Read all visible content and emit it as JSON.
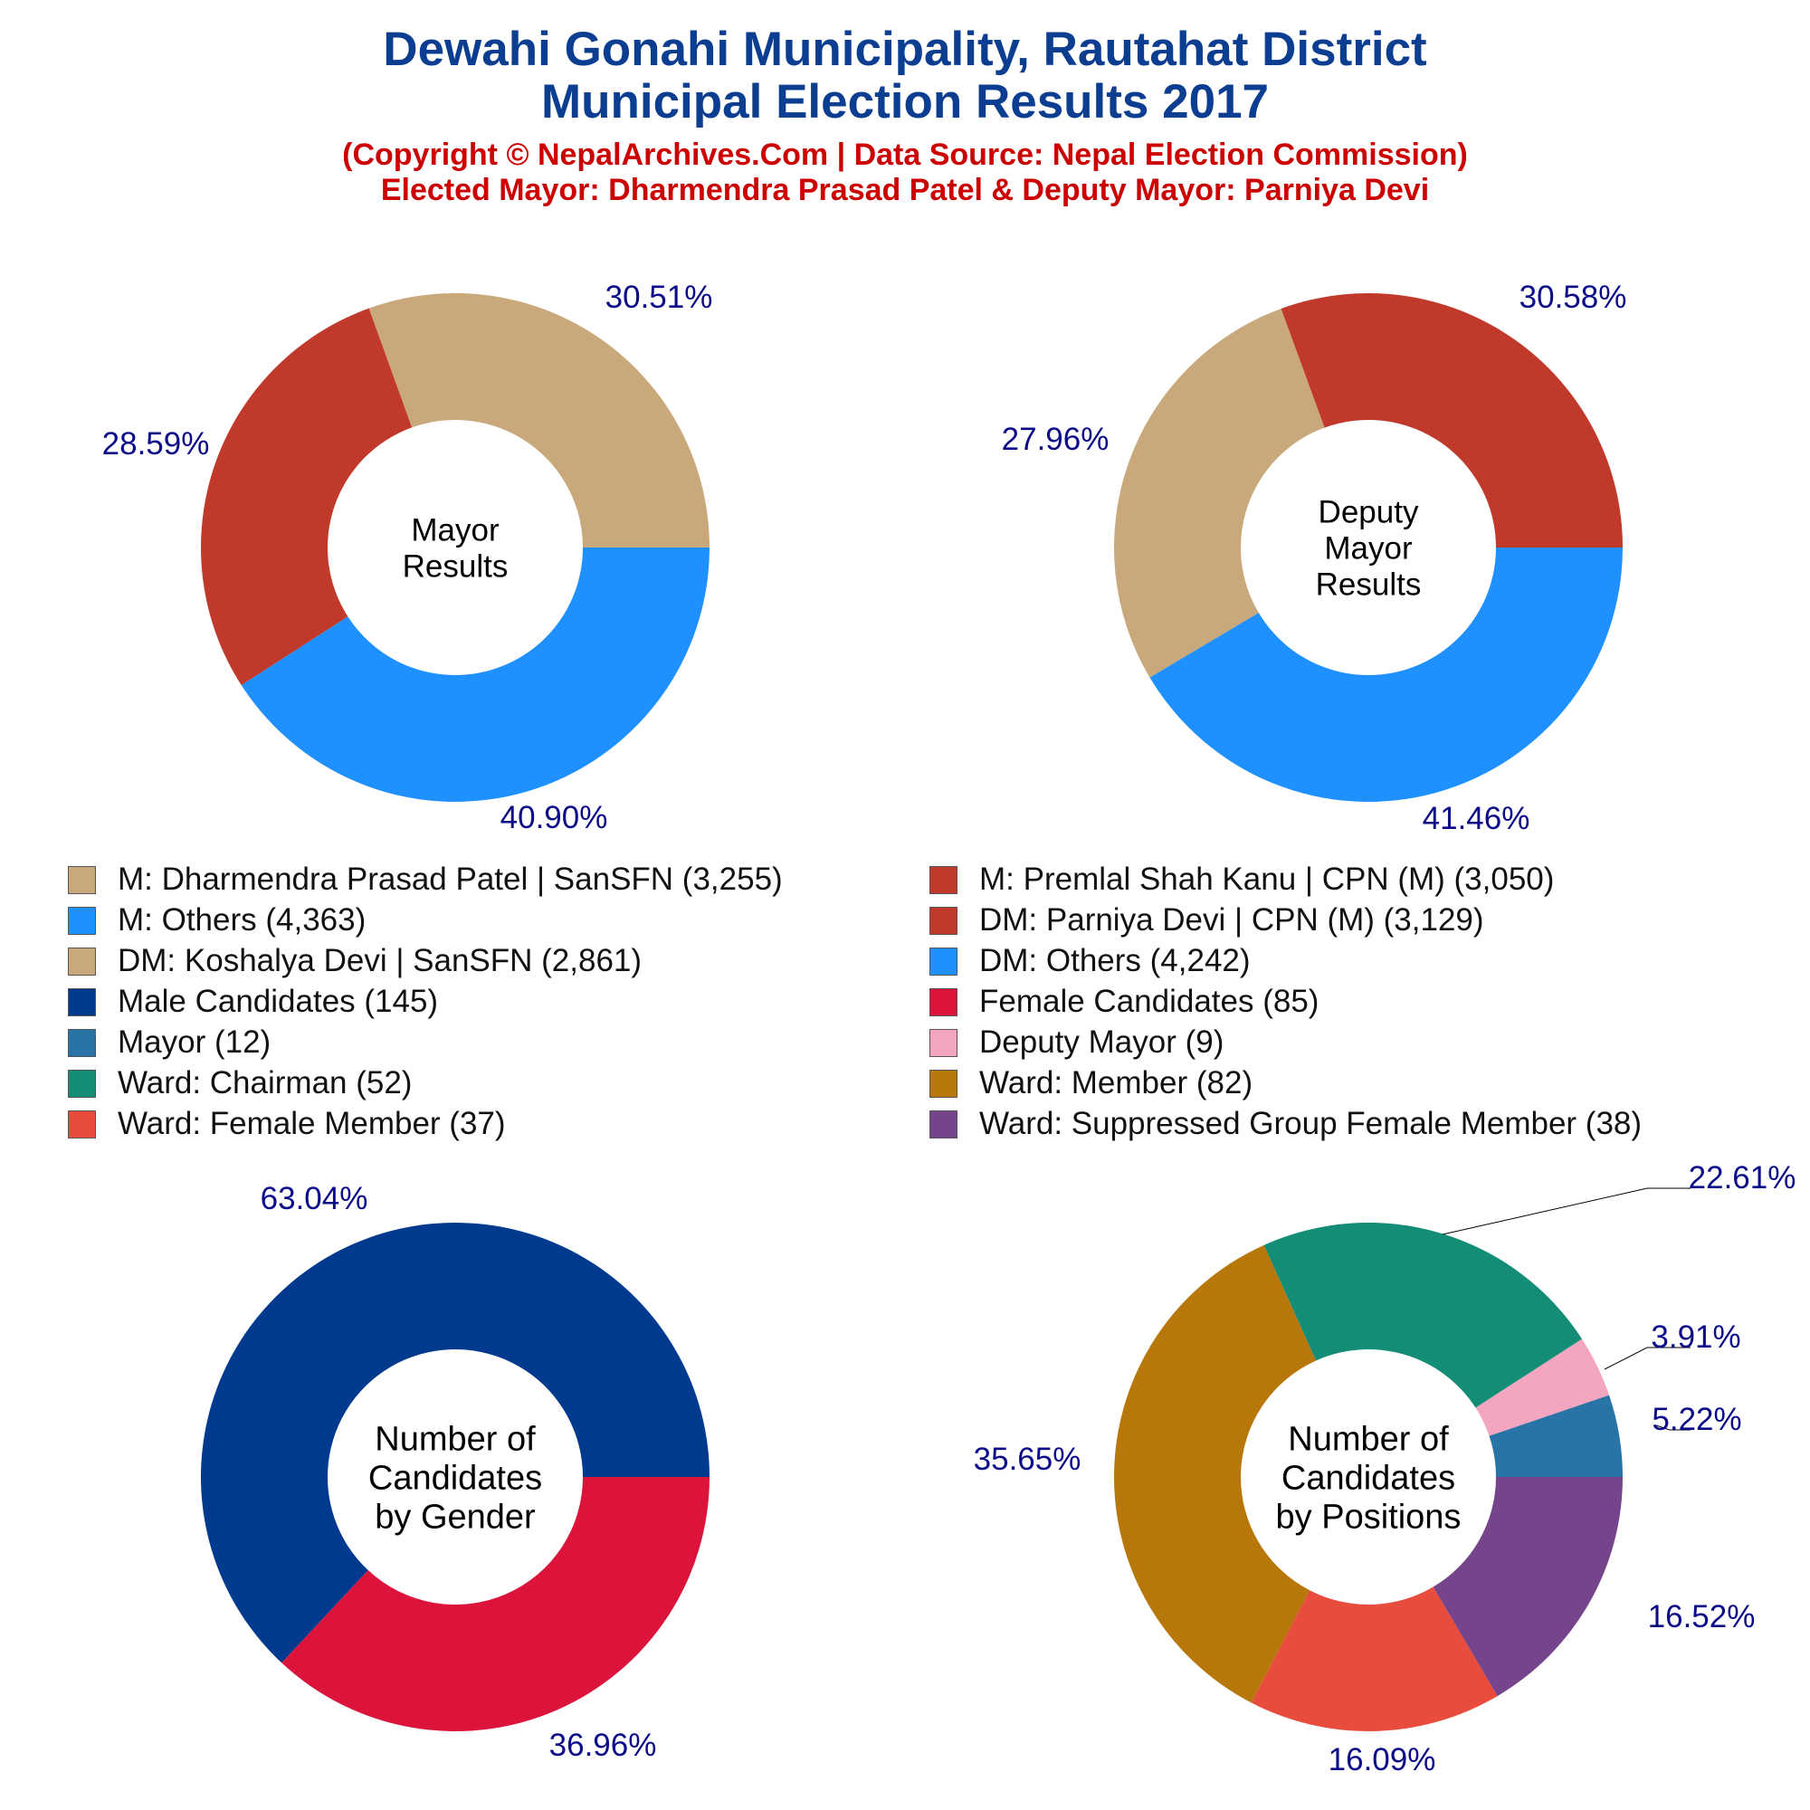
{
  "header": {
    "title": [
      "Dewahi Gonahi Municipality, Rautahat District",
      "Municipal Election Results 2017"
    ],
    "subtitle": [
      "(Copyright © NepalArchives.Com | Data Source: Nepal Election Commission)",
      "Elected Mayor: Dharmendra Prasad Patel & Deputy Mayor: Parniya Devi"
    ]
  },
  "colors": {
    "title": "#0b3d91",
    "subtitle": "#cc0000",
    "percent_label": "#0b0b8a"
  },
  "legend": [
    {
      "label": "M: Dharmendra Prasad Patel | SanSFN (3,255)",
      "color": "#c9a87c"
    },
    {
      "label": "M: Premlal Shah Kanu | CPN (M) (3,050)",
      "color": "#c0392b"
    },
    {
      "label": "M: Others (4,363)",
      "color": "#1e90ff"
    },
    {
      "label": "DM: Parniya Devi | CPN (M) (3,129)",
      "color": "#c0392b"
    },
    {
      "label": "DM: Koshalya Devi | SanSFN (2,861)",
      "color": "#c9a87c"
    },
    {
      "label": "DM: Others (4,242)",
      "color": "#1e90ff"
    },
    {
      "label": "Male Candidates (145)",
      "color": "#003a8f"
    },
    {
      "label": "Female Candidates (85)",
      "color": "#dc143c"
    },
    {
      "label": "Mayor (12)",
      "color": "#2874a6"
    },
    {
      "label": "Deputy Mayor (9)",
      "color": "#f4a6c0"
    },
    {
      "label": "Ward: Chairman (52)",
      "color": "#138d75"
    },
    {
      "label": "Ward: Member (82)",
      "color": "#b8770b"
    },
    {
      "label": "Ward: Female Member (37)",
      "color": "#e74c3c"
    },
    {
      "label": "Ward: Suppressed Group Female Member (38)",
      "color": "#76448a"
    }
  ],
  "chart_data": [
    {
      "type": "pie",
      "center_label": [
        "Mayor",
        "Results"
      ],
      "slices": [
        {
          "name": "M: Dharmendra Prasad Patel | SanSFN",
          "value": 3255,
          "percent_label": "30.51%",
          "color": "#c9a87c"
        },
        {
          "name": "M: Premlal Shah Kanu | CPN (M)",
          "value": 3050,
          "percent_label": "28.59%",
          "color": "#c0392b"
        },
        {
          "name": "M: Others",
          "value": 4363,
          "percent_label": "40.90%",
          "color": "#1e90ff"
        }
      ]
    },
    {
      "type": "pie",
      "center_label": [
        "Deputy",
        "Mayor",
        "Results"
      ],
      "slices": [
        {
          "name": "DM: Parniya Devi | CPN (M)",
          "value": 3129,
          "percent_label": "30.58%",
          "color": "#c0392b"
        },
        {
          "name": "DM: Koshalya Devi | SanSFN",
          "value": 2861,
          "percent_label": "27.96%",
          "color": "#c9a87c"
        },
        {
          "name": "DM: Others",
          "value": 4242,
          "percent_label": "41.46%",
          "color": "#1e90ff"
        }
      ]
    },
    {
      "type": "pie",
      "center_label": [
        "Number of",
        "Candidates",
        "by Gender"
      ],
      "slices": [
        {
          "name": "Male Candidates",
          "value": 145,
          "percent_label": "63.04%",
          "color": "#003a8f"
        },
        {
          "name": "Female Candidates",
          "value": 85,
          "percent_label": "36.96%",
          "color": "#dc143c"
        }
      ]
    },
    {
      "type": "pie",
      "center_label": [
        "Number of",
        "Candidates",
        "by Positions"
      ],
      "slices": [
        {
          "name": "Mayor",
          "value": 12,
          "percent_label": "5.22%",
          "color": "#2874a6"
        },
        {
          "name": "Deputy Mayor",
          "value": 9,
          "percent_label": "3.91%",
          "color": "#f4a6c0"
        },
        {
          "name": "Ward: Chairman",
          "value": 52,
          "percent_label": "22.61%",
          "color": "#138d75"
        },
        {
          "name": "Ward: Member",
          "value": 82,
          "percent_label": "35.65%",
          "color": "#b8770b"
        },
        {
          "name": "Ward: Female Member",
          "value": 37,
          "percent_label": "16.09%",
          "color": "#e74c3c"
        },
        {
          "name": "Ward: Suppressed Group Female Member",
          "value": 38,
          "percent_label": "16.52%",
          "color": "#76448a"
        }
      ]
    }
  ]
}
